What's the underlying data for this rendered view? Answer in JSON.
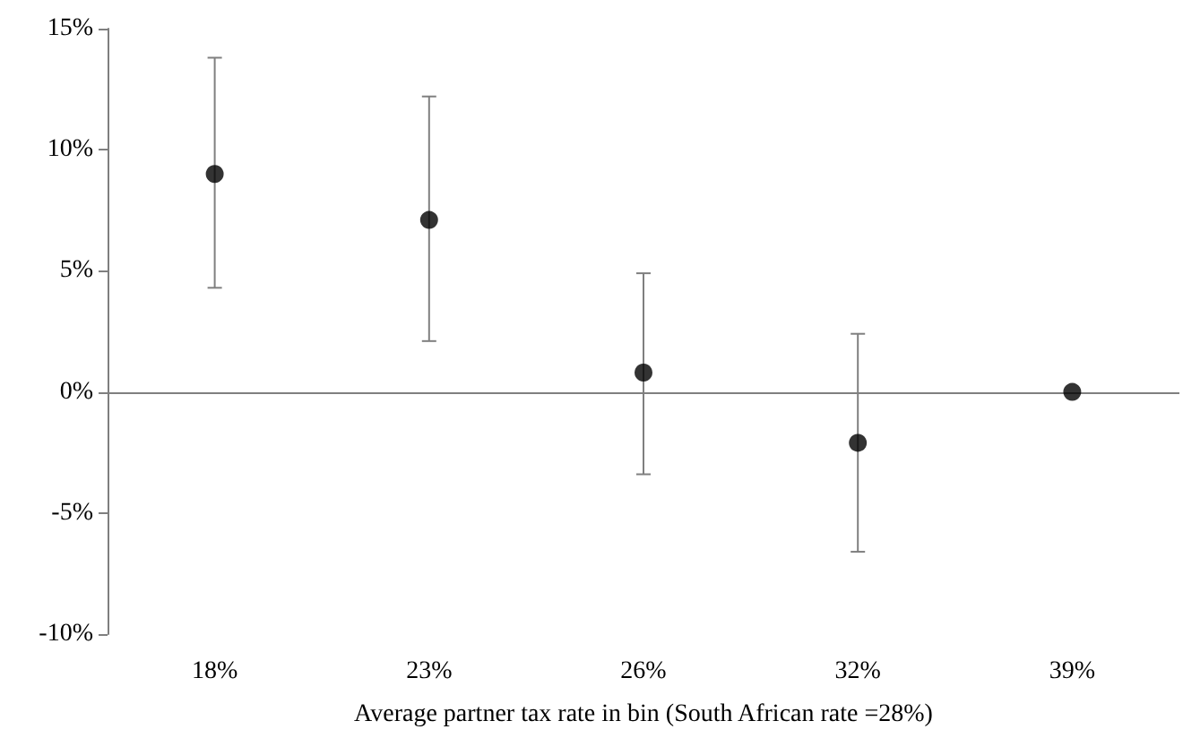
{
  "chart_data": {
    "type": "scatter",
    "xlabel": "Average partner tax rate in bin (South African rate =28%)",
    "categories": [
      "18%",
      "23%",
      "26%",
      "32%",
      "39%"
    ],
    "values": [
      9.0,
      7.1,
      0.8,
      -2.1,
      0
    ],
    "errors": [
      [
        4.3,
        13.8
      ],
      [
        2.1,
        12.2
      ],
      [
        -3.4,
        4.9
      ],
      [
        -6.6,
        2.4
      ],
      null
    ],
    "color": "#000000",
    "marker": "circle",
    "grid": false,
    "ref_lines": [
      {
        "axis": "y",
        "value": 0,
        "color": "#7f7f7f"
      }
    ],
    "ylim": [
      -10,
      15
    ],
    "yticks": [
      {
        "value": -10,
        "label": "-10%"
      },
      {
        "value": -5,
        "label": "-5%"
      },
      {
        "value": 0,
        "label": "0%"
      },
      {
        "value": 5,
        "label": "5%"
      },
      {
        "value": 10,
        "label": "10%"
      },
      {
        "value": 15,
        "label": "15%"
      }
    ]
  }
}
